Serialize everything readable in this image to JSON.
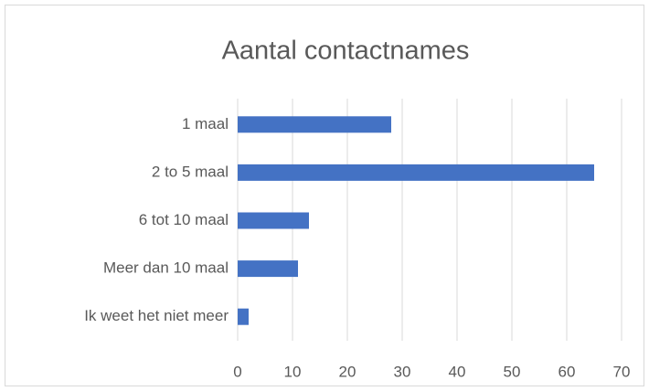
{
  "chart_data": {
    "type": "bar",
    "orientation": "horizontal",
    "title": "Aantal contactnames",
    "categories": [
      "1 maal",
      "2 to 5 maal",
      "6 tot 10 maal",
      "Meer dan 10 maal",
      "Ik weet het niet meer"
    ],
    "values": [
      28,
      65,
      13,
      11,
      2
    ],
    "color": "#4472c4",
    "xlim": [
      0,
      70
    ],
    "xticks": [
      0,
      10,
      20,
      30,
      40,
      50,
      60,
      70
    ],
    "grid": true
  }
}
